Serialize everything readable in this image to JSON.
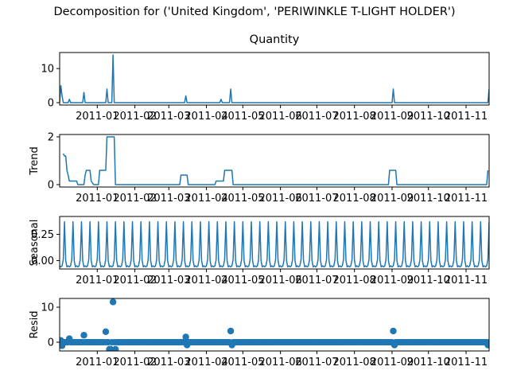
{
  "figure": {
    "title": "Decomposition for ('United Kingdom', 'PERIWINKLE T-LIGHT HOLDER')"
  },
  "colors": {
    "series": "#1f77b4",
    "axis": "#000000",
    "background": "#ffffff"
  },
  "chart_data": [
    {
      "type": "line",
      "title": "Quantity",
      "ylabel": "",
      "xlim": [
        "2010-12-01",
        "2011-11-20"
      ],
      "ylim": [
        -0.7,
        14.7
      ],
      "yticks": [
        0,
        10
      ],
      "xticks": [
        "2011-01",
        "2011-02",
        "2011-03",
        "2011-04",
        "2011-05",
        "2011-06",
        "2011-07",
        "2011-08",
        "2011-09",
        "2011-10",
        "2011-11"
      ],
      "grid": false,
      "series": [
        {
          "values": [
            [
              "2010-12-01",
              0
            ],
            [
              "2010-12-02",
              5
            ],
            [
              "2010-12-03",
              2
            ],
            [
              "2010-12-04",
              0
            ],
            [
              "2010-12-08",
              0
            ],
            [
              "2010-12-09",
              1
            ],
            [
              "2010-12-10",
              0
            ],
            [
              "2010-12-20",
              0
            ],
            [
              "2010-12-21",
              3
            ],
            [
              "2010-12-22",
              0
            ],
            [
              "2011-01-08",
              0
            ],
            [
              "2011-01-09",
              4
            ],
            [
              "2011-01-10",
              0
            ],
            [
              "2011-01-13",
              0
            ],
            [
              "2011-01-14",
              14
            ],
            [
              "2011-01-15",
              0
            ],
            [
              "2011-03-14",
              0
            ],
            [
              "2011-03-15",
              2
            ],
            [
              "2011-03-16",
              0
            ],
            [
              "2011-04-12",
              0
            ],
            [
              "2011-04-13",
              1
            ],
            [
              "2011-04-14",
              0
            ],
            [
              "2011-04-20",
              0
            ],
            [
              "2011-04-21",
              4
            ],
            [
              "2011-04-22",
              0
            ],
            [
              "2011-09-01",
              0
            ],
            [
              "2011-09-02",
              4
            ],
            [
              "2011-09-03",
              0
            ],
            [
              "2011-11-19",
              0
            ],
            [
              "2011-11-20",
              4
            ]
          ]
        }
      ]
    },
    {
      "type": "line",
      "title": "",
      "ylabel": "Trend",
      "xlim": [
        "2010-12-01",
        "2011-11-20"
      ],
      "ylim": [
        -0.1,
        2.1
      ],
      "yticks": [
        0,
        2
      ],
      "xticks": [
        "2011-01",
        "2011-02",
        "2011-03",
        "2011-04",
        "2011-05",
        "2011-06",
        "2011-07",
        "2011-08",
        "2011-09",
        "2011-10",
        "2011-11"
      ],
      "grid": false,
      "series": [
        {
          "values": [
            [
              "2010-12-04",
              1.3
            ],
            [
              "2010-12-05",
              1.2
            ],
            [
              "2010-12-06",
              1.2
            ],
            [
              "2010-12-07",
              0.6
            ],
            [
              "2010-12-08",
              0.4
            ],
            [
              "2010-12-09",
              0.15
            ],
            [
              "2010-12-15",
              0.15
            ],
            [
              "2010-12-16",
              0
            ],
            [
              "2010-12-21",
              0
            ],
            [
              "2010-12-22",
              0.4
            ],
            [
              "2010-12-23",
              0.6
            ],
            [
              "2010-12-26",
              0.6
            ],
            [
              "2010-12-27",
              0.15
            ],
            [
              "2010-12-29",
              0
            ],
            [
              "2011-01-02",
              0
            ],
            [
              "2011-01-03",
              0.6
            ],
            [
              "2011-01-08",
              0.6
            ],
            [
              "2011-01-09",
              2.0
            ],
            [
              "2011-01-15",
              2.0
            ],
            [
              "2011-01-16",
              0
            ],
            [
              "2011-03-10",
              0
            ],
            [
              "2011-03-11",
              0.4
            ],
            [
              "2011-03-16",
              0.4
            ],
            [
              "2011-03-17",
              0
            ],
            [
              "2011-04-08",
              0
            ],
            [
              "2011-04-09",
              0.15
            ],
            [
              "2011-04-15",
              0.15
            ],
            [
              "2011-04-16",
              0.6
            ],
            [
              "2011-04-22",
              0.6
            ],
            [
              "2011-04-23",
              0
            ],
            [
              "2011-08-29",
              0
            ],
            [
              "2011-08-30",
              0.6
            ],
            [
              "2011-09-04",
              0.6
            ],
            [
              "2011-09-05",
              0
            ],
            [
              "2011-11-18",
              0
            ],
            [
              "2011-11-19",
              0.6
            ]
          ]
        }
      ]
    },
    {
      "type": "line",
      "title": "",
      "ylabel": "Seasonal",
      "xlim": [
        "2010-12-01",
        "2011-11-20"
      ],
      "ylim": [
        -0.08,
        0.42
      ],
      "yticks": [
        0.0,
        0.25
      ],
      "xticks": [
        "2011-01",
        "2011-02",
        "2011-03",
        "2011-04",
        "2011-05",
        "2011-06",
        "2011-07",
        "2011-08",
        "2011-09",
        "2011-10",
        "2011-11"
      ],
      "grid": false,
      "period_days": 7,
      "pattern": [
        -0.05,
        -0.06,
        -0.05,
        0.01,
        0.37,
        0.0,
        -0.06
      ],
      "series_start": "2010-12-01"
    },
    {
      "type": "scatter",
      "title": "",
      "ylabel": "Resid",
      "xlim": [
        "2010-12-01",
        "2011-11-20"
      ],
      "ylim": [
        -2.5,
        12.5
      ],
      "yticks": [
        0,
        10
      ],
      "xticks": [
        "2011-01",
        "2011-02",
        "2011-03",
        "2011-04",
        "2011-05",
        "2011-06",
        "2011-07",
        "2011-08",
        "2011-09",
        "2011-10",
        "2011-11"
      ],
      "grid": false,
      "baseline": 0,
      "outliers": [
        [
          "2010-12-02",
          0.5
        ],
        [
          "2010-12-03",
          -1
        ],
        [
          "2010-12-09",
          1.0
        ],
        [
          "2010-12-21",
          2.0
        ],
        [
          "2011-01-08",
          3.0
        ],
        [
          "2011-01-11",
          -2.0
        ],
        [
          "2011-01-12",
          -2.0
        ],
        [
          "2011-01-14",
          11.5
        ],
        [
          "2011-01-16",
          -2.0
        ],
        [
          "2011-03-15",
          1.5
        ],
        [
          "2011-03-16",
          -0.8
        ],
        [
          "2011-04-21",
          3.2
        ],
        [
          "2011-04-22",
          -0.8
        ],
        [
          "2011-09-02",
          3.2
        ],
        [
          "2011-09-03",
          -0.8
        ],
        [
          "2011-11-19",
          -0.8
        ]
      ]
    }
  ]
}
